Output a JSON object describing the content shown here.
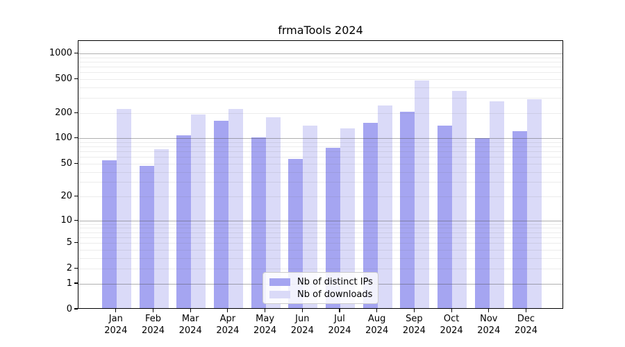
{
  "chart_data": {
    "type": "bar",
    "title": "frmaTools 2024",
    "months": [
      "Jan",
      "Feb",
      "Mar",
      "Apr",
      "May",
      "Jun",
      "Jul",
      "Aug",
      "Sep",
      "Oct",
      "Nov",
      "Dec"
    ],
    "year": "2024",
    "categories": [
      "Jan 2024",
      "Feb 2024",
      "Mar 2024",
      "Apr 2024",
      "May 2024",
      "Jun 2024",
      "Jul 2024",
      "Aug 2024",
      "Sep 2024",
      "Oct 2024",
      "Nov 2024",
      "Dec 2024"
    ],
    "series": [
      {
        "key": "ips",
        "name": "Nb of distinct IPs",
        "color": "#a5a5f1",
        "values": [
          53,
          46,
          105,
          158,
          100,
          55,
          75,
          148,
          202,
          138,
          98,
          118
        ]
      },
      {
        "key": "downloads",
        "name": "Nb of downloads",
        "color": "#dadaf8",
        "values": [
          218,
          72,
          187,
          218,
          172,
          138,
          127,
          238,
          470,
          353,
          265,
          280
        ]
      }
    ],
    "yscale": "log1p",
    "yticks": [
      0,
      1,
      2,
      5,
      10,
      20,
      50,
      100,
      200,
      500,
      1000
    ],
    "ylim": [
      0,
      1390
    ],
    "grid": {
      "major_color": "rgba(80,80,80,0.45)",
      "minor_color": "rgba(100,100,100,0.12)"
    },
    "legend_position": "lower center",
    "axis_color": "#000000"
  }
}
